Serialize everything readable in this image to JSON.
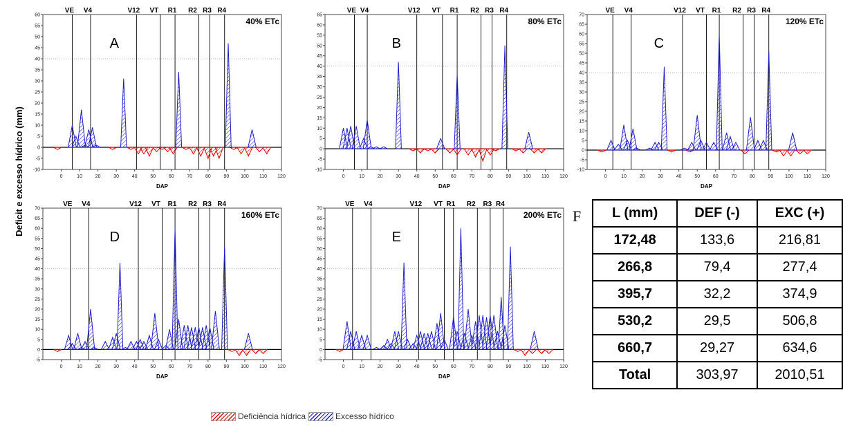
{
  "ylabel": "Deficit e excesso hídrico (mm)",
  "legend": {
    "deficit": "Deficiência hídrica",
    "excess": "Excesso hídrico"
  },
  "colors": {
    "deficit": "#e00000",
    "excess": "#1f1fc8"
  },
  "table": {
    "letter": "F",
    "headers": [
      "L (mm)",
      "DEF (-)",
      "EXC (+)"
    ],
    "rows": [
      [
        "172,48",
        "133,6",
        "216,81"
      ],
      [
        "266,8",
        "79,4",
        "277,4"
      ],
      [
        "395,7",
        "32,2",
        "374,9"
      ],
      [
        "530,2",
        "29,5",
        "506,8"
      ],
      [
        "660,7",
        "29,27",
        "634,6"
      ],
      [
        "Total",
        "303,97",
        "2010,51"
      ]
    ]
  },
  "chart_data": [
    {
      "type": "area",
      "letter": "A",
      "title": "40% ETc",
      "xlabel": "DAP",
      "xlim": [
        -10,
        120
      ],
      "ylim": [
        -10,
        60
      ],
      "ystep": 5,
      "xstep": 10,
      "stages": [
        {
          "label": "VE",
          "x": 6
        },
        {
          "label": "V4",
          "x": 16
        },
        {
          "label": "V12",
          "x": 41
        },
        {
          "label": "VT",
          "x": 54
        },
        {
          "label": "R1",
          "x": 62
        },
        {
          "label": "R2",
          "x": 75
        },
        {
          "label": "R3",
          "x": 81
        },
        {
          "label": "R4",
          "x": 89
        }
      ],
      "excess": [
        [
          6,
          10
        ],
        [
          8,
          5
        ],
        [
          11,
          17
        ],
        [
          13,
          1
        ],
        [
          15,
          8
        ],
        [
          17,
          9
        ],
        [
          19,
          1
        ],
        [
          34,
          31
        ],
        [
          64,
          34
        ],
        [
          91,
          47
        ],
        [
          104,
          8
        ]
      ],
      "deficit": [
        [
          -2,
          -1
        ],
        [
          28,
          -1
        ],
        [
          38,
          -1
        ],
        [
          42,
          -3
        ],
        [
          45,
          -3
        ],
        [
          48,
          -4
        ],
        [
          52,
          -2
        ],
        [
          55,
          -1
        ],
        [
          58,
          -2
        ],
        [
          61,
          -3
        ],
        [
          68,
          -1
        ],
        [
          72,
          -3
        ],
        [
          76,
          -4
        ],
        [
          80,
          -5
        ],
        [
          83,
          -4
        ],
        [
          86,
          -5
        ],
        [
          94,
          -1
        ],
        [
          98,
          -3
        ],
        [
          102,
          -4
        ],
        [
          108,
          -2
        ],
        [
          112,
          -3
        ]
      ]
    },
    {
      "type": "area",
      "letter": "B",
      "title": "80% ETc",
      "xlabel": "DAP",
      "xlim": [
        -10,
        120
      ],
      "ylim": [
        -10,
        65
      ],
      "ystep": 5,
      "xstep": 10,
      "stages": [
        {
          "label": "VE",
          "x": 6
        },
        {
          "label": "V4",
          "x": 13
        },
        {
          "label": "V12",
          "x": 40
        },
        {
          "label": "VT",
          "x": 54
        },
        {
          "label": "R1",
          "x": 62
        },
        {
          "label": "R2",
          "x": 75
        },
        {
          "label": "R3",
          "x": 81
        },
        {
          "label": "R4",
          "x": 89
        }
      ],
      "excess": [
        [
          0,
          10
        ],
        [
          2,
          10
        ],
        [
          4,
          11
        ],
        [
          7,
          11
        ],
        [
          11,
          5
        ],
        [
          13,
          14
        ],
        [
          15,
          1
        ],
        [
          18,
          1
        ],
        [
          22,
          1
        ],
        [
          30,
          42
        ],
        [
          53,
          5
        ],
        [
          62,
          36
        ],
        [
          88,
          50
        ],
        [
          101,
          8
        ]
      ],
      "deficit": [
        [
          38,
          -1
        ],
        [
          42,
          -2
        ],
        [
          46,
          -1
        ],
        [
          50,
          -2
        ],
        [
          58,
          -2
        ],
        [
          62,
          -3
        ],
        [
          68,
          -3
        ],
        [
          72,
          -4
        ],
        [
          76,
          -6
        ],
        [
          80,
          -3
        ],
        [
          83,
          -1
        ],
        [
          94,
          -1
        ],
        [
          98,
          -2
        ],
        [
          104,
          -2
        ],
        [
          108,
          -2
        ]
      ]
    },
    {
      "type": "area",
      "letter": "C",
      "title": "120% ETc",
      "xlabel": "DAP",
      "xlim": [
        -10,
        120
      ],
      "ylim": [
        -10,
        70
      ],
      "ystep": 5,
      "xstep": 10,
      "stages": [
        {
          "label": "VE",
          "x": 4
        },
        {
          "label": "V4",
          "x": 14
        },
        {
          "label": "V12",
          "x": 42
        },
        {
          "label": "VT",
          "x": 55
        },
        {
          "label": "R1",
          "x": 62
        },
        {
          "label": "R2",
          "x": 75
        },
        {
          "label": "R3",
          "x": 81
        },
        {
          "label": "R4",
          "x": 89
        }
      ],
      "excess": [
        [
          3,
          5
        ],
        [
          7,
          3
        ],
        [
          10,
          13
        ],
        [
          12,
          5
        ],
        [
          15,
          11
        ],
        [
          17,
          1
        ],
        [
          24,
          1
        ],
        [
          27,
          4
        ],
        [
          29,
          4
        ],
        [
          32,
          43
        ],
        [
          43,
          1
        ],
        [
          47,
          4
        ],
        [
          50,
          18
        ],
        [
          52,
          5
        ],
        [
          55,
          4
        ],
        [
          59,
          4
        ],
        [
          62,
          60
        ],
        [
          66,
          9
        ],
        [
          68,
          7
        ],
        [
          71,
          4
        ],
        [
          79,
          17
        ],
        [
          83,
          5
        ],
        [
          86,
          5
        ],
        [
          89,
          51
        ],
        [
          102,
          9
        ]
      ],
      "deficit": [
        [
          -2,
          -1
        ],
        [
          36,
          -1
        ],
        [
          46,
          -1
        ],
        [
          76,
          -2
        ],
        [
          93,
          -1
        ],
        [
          97,
          -3
        ],
        [
          101,
          -3
        ],
        [
          106,
          -2
        ],
        [
          110,
          -2
        ]
      ]
    },
    {
      "type": "area",
      "letter": "D",
      "title": "160% ETc",
      "xlabel": "DAP",
      "xlim": [
        -10,
        120
      ],
      "ylim": [
        -5,
        70
      ],
      "ystep": 5,
      "xstep": 10,
      "stages": [
        {
          "label": "VE",
          "x": 5
        },
        {
          "label": "V4",
          "x": 15
        },
        {
          "label": "V12",
          "x": 42
        },
        {
          "label": "VT",
          "x": 55
        },
        {
          "label": "R1",
          "x": 62
        },
        {
          "label": "R2",
          "x": 75
        },
        {
          "label": "R3",
          "x": 81
        },
        {
          "label": "R4",
          "x": 89
        }
      ],
      "excess": [
        [
          4,
          7
        ],
        [
          6,
          3
        ],
        [
          9,
          8
        ],
        [
          11,
          1
        ],
        [
          13,
          4
        ],
        [
          16,
          20
        ],
        [
          18,
          1
        ],
        [
          24,
          4
        ],
        [
          28,
          6
        ],
        [
          30,
          8
        ],
        [
          32,
          43
        ],
        [
          35,
          1
        ],
        [
          38,
          4
        ],
        [
          41,
          4
        ],
        [
          43,
          5
        ],
        [
          45,
          4
        ],
        [
          48,
          7
        ],
        [
          51,
          18
        ],
        [
          53,
          5
        ],
        [
          57,
          2
        ],
        [
          59,
          10
        ],
        [
          62,
          60
        ],
        [
          64,
          15
        ],
        [
          67,
          12
        ],
        [
          69,
          12
        ],
        [
          71,
          11
        ],
        [
          73,
          11
        ],
        [
          75,
          11
        ],
        [
          77,
          11
        ],
        [
          79,
          12
        ],
        [
          81,
          11
        ],
        [
          84,
          19
        ],
        [
          89,
          51
        ],
        [
          102,
          8
        ]
      ],
      "deficit": [
        [
          -2,
          -1
        ],
        [
          93,
          -1
        ],
        [
          97,
          -3
        ],
        [
          101,
          -3
        ],
        [
          106,
          -2
        ],
        [
          110,
          -2
        ]
      ]
    },
    {
      "type": "area",
      "letter": "E",
      "title": "200% ETc",
      "xlabel": "DAP",
      "xlim": [
        -10,
        120
      ],
      "ylim": [
        -5,
        70
      ],
      "ystep": 5,
      "xstep": 10,
      "stages": [
        {
          "label": "VE",
          "x": 5
        },
        {
          "label": "V4",
          "x": 15
        },
        {
          "label": "V12",
          "x": 41
        },
        {
          "label": "VT",
          "x": 55
        },
        {
          "label": "R1",
          "x": 60
        },
        {
          "label": "R2",
          "x": 73
        },
        {
          "label": "R3",
          "x": 80
        },
        {
          "label": "R4",
          "x": 87
        }
      ],
      "excess": [
        [
          2,
          14
        ],
        [
          4,
          9
        ],
        [
          7,
          9
        ],
        [
          10,
          7
        ],
        [
          13,
          7
        ],
        [
          18,
          1
        ],
        [
          22,
          2
        ],
        [
          24,
          5
        ],
        [
          26,
          3
        ],
        [
          28,
          9
        ],
        [
          30,
          9
        ],
        [
          33,
          43
        ],
        [
          35,
          5
        ],
        [
          38,
          3
        ],
        [
          40,
          7
        ],
        [
          42,
          9
        ],
        [
          44,
          8
        ],
        [
          46,
          8
        ],
        [
          48,
          9
        ],
        [
          51,
          13
        ],
        [
          53,
          18
        ],
        [
          55,
          5
        ],
        [
          60,
          16
        ],
        [
          62,
          9
        ],
        [
          64,
          60
        ],
        [
          66,
          8
        ],
        [
          68,
          20
        ],
        [
          70,
          7
        ],
        [
          72,
          14
        ],
        [
          74,
          17
        ],
        [
          76,
          17
        ],
        [
          78,
          16
        ],
        [
          80,
          17
        ],
        [
          82,
          17
        ],
        [
          84,
          9
        ],
        [
          86,
          26
        ],
        [
          88,
          12
        ],
        [
          91,
          51
        ],
        [
          104,
          9
        ]
      ],
      "deficit": [
        [
          -2,
          -1
        ],
        [
          95,
          -1
        ],
        [
          99,
          -3
        ],
        [
          103,
          -2
        ],
        [
          108,
          -2
        ],
        [
          112,
          -2
        ]
      ]
    }
  ]
}
